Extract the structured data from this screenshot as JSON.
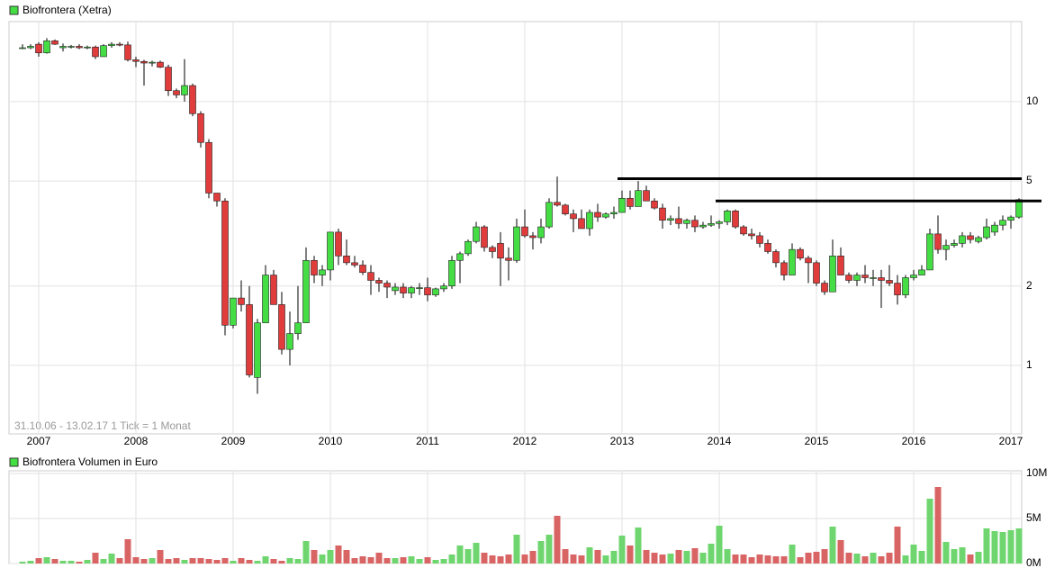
{
  "chart_data": [
    {
      "type": "candlestick",
      "log_scale": true,
      "grid": true,
      "series": [
        {
          "name": "Biofrontera (Xetra)",
          "color": "#44dd44",
          "up_color": "#44dd44",
          "down_color": "#e03c3c",
          "ohlc": [
            [
              16.0,
              16.5,
              15.8,
              16.0
            ],
            [
              16.0,
              16.5,
              15.8,
              16.2
            ],
            [
              16.5,
              16.8,
              14.8,
              15.3
            ],
            [
              15.3,
              17.4,
              15.2,
              17.0
            ],
            [
              17.0,
              17.2,
              16.4,
              16.5
            ],
            [
              16.0,
              16.6,
              15.5,
              16.2
            ],
            [
              16.2,
              16.4,
              15.9,
              16.2
            ],
            [
              16.2,
              16.5,
              15.8,
              16.0
            ],
            [
              16.0,
              16.3,
              15.8,
              16.1
            ],
            [
              16.1,
              16.3,
              14.5,
              14.8
            ],
            [
              14.8,
              16.5,
              14.8,
              16.3
            ],
            [
              16.3,
              16.8,
              16.0,
              16.5
            ],
            [
              16.5,
              16.8,
              16.2,
              16.4
            ],
            [
              16.4,
              16.9,
              14.2,
              14.4
            ],
            [
              14.4,
              14.8,
              13.5,
              14.2
            ],
            [
              14.2,
              14.4,
              11.5,
              14.0
            ],
            [
              14.0,
              14.3,
              13.6,
              14.1
            ],
            [
              14.1,
              14.3,
              13.4,
              13.5
            ],
            [
              13.5,
              13.8,
              10.5,
              11.0
            ],
            [
              11.0,
              11.2,
              10.3,
              10.6
            ],
            [
              10.6,
              14.5,
              10.0,
              11.5
            ],
            [
              11.5,
              11.7,
              8.8,
              9.0
            ],
            [
              9.0,
              9.2,
              6.7,
              7.0
            ],
            [
              7.0,
              7.2,
              4.3,
              4.5
            ],
            [
              4.5,
              4.5,
              4.0,
              4.2
            ],
            [
              4.2,
              4.3,
              1.3,
              1.42
            ],
            [
              1.42,
              1.8,
              1.38,
              1.8
            ],
            [
              1.8,
              2.1,
              1.6,
              1.7
            ],
            [
              1.7,
              2.0,
              0.9,
              0.92
            ],
            [
              0.9,
              1.5,
              0.78,
              1.45
            ],
            [
              1.45,
              2.4,
              1.45,
              2.2
            ],
            [
              2.2,
              2.3,
              1.7,
              1.7
            ],
            [
              1.7,
              1.9,
              1.1,
              1.15
            ],
            [
              1.15,
              1.6,
              1.0,
              1.32
            ],
            [
              1.32,
              2.0,
              1.25,
              1.45
            ],
            [
              1.45,
              2.8,
              1.45,
              2.5
            ],
            [
              2.5,
              2.6,
              2.05,
              2.2
            ],
            [
              2.2,
              2.4,
              2.0,
              2.3
            ],
            [
              2.3,
              3.2,
              2.1,
              3.2
            ],
            [
              3.2,
              3.3,
              2.4,
              2.6
            ],
            [
              2.6,
              3.0,
              2.4,
              2.45
            ],
            [
              2.45,
              2.6,
              2.35,
              2.4
            ],
            [
              2.4,
              2.5,
              2.2,
              2.25
            ],
            [
              2.25,
              2.4,
              1.85,
              2.1
            ],
            [
              2.1,
              2.15,
              1.9,
              2.05
            ],
            [
              2.05,
              2.1,
              1.8,
              1.98
            ],
            [
              1.92,
              2.05,
              1.85,
              1.98
            ],
            [
              1.98,
              2.05,
              1.8,
              1.88
            ],
            [
              1.88,
              2.0,
              1.8,
              1.97
            ],
            [
              1.97,
              2.05,
              1.85,
              1.97
            ],
            [
              1.97,
              2.15,
              1.75,
              1.85
            ],
            [
              1.85,
              1.97,
              1.82,
              1.95
            ],
            [
              1.95,
              2.05,
              1.9,
              2.0
            ],
            [
              2.0,
              2.6,
              1.95,
              2.5
            ],
            [
              2.5,
              2.7,
              2.05,
              2.65
            ],
            [
              2.65,
              3.0,
              2.6,
              2.95
            ],
            [
              2.95,
              3.5,
              2.9,
              3.35
            ],
            [
              3.35,
              3.4,
              2.7,
              2.8
            ],
            [
              2.8,
              2.85,
              2.55,
              2.7
            ],
            [
              2.9,
              3.2,
              2.0,
              2.55
            ],
            [
              2.55,
              2.8,
              2.1,
              2.5
            ],
            [
              2.5,
              3.6,
              2.45,
              3.35
            ],
            [
              3.35,
              3.9,
              3.05,
              3.1
            ],
            [
              3.1,
              3.2,
              2.75,
              3.05
            ],
            [
              3.05,
              3.6,
              2.9,
              3.35
            ],
            [
              3.35,
              4.3,
              3.3,
              4.15
            ],
            [
              4.15,
              5.2,
              4.0,
              4.05
            ],
            [
              4.05,
              4.1,
              3.7,
              3.75
            ],
            [
              3.75,
              3.9,
              3.2,
              3.6
            ],
            [
              3.6,
              3.9,
              3.3,
              3.3
            ],
            [
              3.3,
              3.9,
              3.1,
              3.8
            ],
            [
              3.8,
              4.1,
              3.5,
              3.65
            ],
            [
              3.65,
              3.8,
              3.6,
              3.75
            ],
            [
              3.75,
              4.0,
              3.6,
              3.8
            ],
            [
              3.8,
              4.6,
              3.8,
              4.3
            ],
            [
              4.3,
              4.6,
              3.9,
              4.0
            ],
            [
              4.0,
              5.0,
              4.0,
              4.6
            ],
            [
              4.6,
              4.8,
              4.2,
              4.2
            ],
            [
              4.2,
              4.3,
              3.9,
              3.95
            ],
            [
              3.95,
              4.1,
              3.3,
              3.55
            ],
            [
              3.55,
              3.7,
              3.4,
              3.6
            ],
            [
              3.6,
              4.0,
              3.3,
              3.45
            ],
            [
              3.45,
              3.6,
              3.3,
              3.55
            ],
            [
              3.55,
              3.7,
              3.2,
              3.35
            ],
            [
              3.35,
              3.5,
              3.3,
              3.4
            ],
            [
              3.4,
              3.7,
              3.35,
              3.45
            ],
            [
              3.45,
              3.55,
              3.3,
              3.5
            ],
            [
              3.5,
              3.9,
              3.4,
              3.85
            ],
            [
              3.85,
              3.9,
              3.3,
              3.35
            ],
            [
              3.35,
              3.4,
              3.1,
              3.15
            ],
            [
              3.15,
              3.3,
              3.0,
              3.1
            ],
            [
              3.1,
              3.2,
              2.8,
              2.9
            ],
            [
              2.9,
              3.0,
              2.65,
              2.7
            ],
            [
              2.7,
              2.75,
              2.35,
              2.45
            ],
            [
              2.45,
              2.5,
              2.1,
              2.2
            ],
            [
              2.2,
              2.9,
              2.2,
              2.75
            ],
            [
              2.75,
              2.8,
              2.5,
              2.55
            ],
            [
              2.55,
              2.6,
              2.05,
              2.45
            ],
            [
              2.45,
              2.5,
              2.0,
              2.05
            ],
            [
              2.05,
              2.1,
              1.85,
              1.9
            ],
            [
              1.9,
              3.0,
              1.9,
              2.6
            ],
            [
              2.6,
              2.8,
              2.2,
              2.2
            ],
            [
              2.2,
              2.25,
              2.05,
              2.1
            ],
            [
              2.1,
              2.25,
              2.0,
              2.2
            ],
            [
              2.2,
              2.4,
              2.05,
              2.15
            ],
            [
              2.15,
              2.3,
              2.0,
              2.15
            ],
            [
              2.15,
              2.3,
              1.65,
              2.1
            ],
            [
              2.1,
              2.4,
              2.0,
              2.05
            ],
            [
              2.05,
              2.2,
              1.7,
              1.85
            ],
            [
              1.85,
              2.2,
              1.8,
              2.15
            ],
            [
              2.15,
              2.3,
              2.1,
              2.2
            ],
            [
              2.2,
              2.4,
              2.2,
              2.3
            ],
            [
              2.3,
              3.3,
              2.3,
              3.15
            ],
            [
              3.15,
              3.7,
              2.65,
              2.75
            ],
            [
              2.75,
              3.0,
              2.5,
              2.85
            ],
            [
              2.85,
              3.0,
              2.8,
              2.9
            ],
            [
              2.9,
              3.2,
              2.8,
              3.1
            ],
            [
              3.1,
              3.2,
              2.9,
              3.0
            ],
            [
              2.95,
              3.1,
              2.9,
              3.05
            ],
            [
              3.05,
              3.6,
              3.0,
              3.35
            ],
            [
              3.2,
              3.5,
              3.1,
              3.4
            ],
            [
              3.4,
              3.7,
              3.25,
              3.55
            ],
            [
              3.55,
              3.7,
              3.3,
              3.65
            ],
            [
              3.65,
              4.3,
              3.6,
              4.25
            ]
          ]
        }
      ],
      "categories": [
        null,
        null,
        "2007",
        null,
        null,
        null,
        null,
        null,
        null,
        null,
        null,
        null,
        null,
        null,
        "2008",
        null,
        null,
        null,
        null,
        null,
        null,
        null,
        null,
        null,
        null,
        null,
        "2009",
        null,
        null,
        null,
        null,
        null,
        null,
        null,
        null,
        null,
        null,
        null,
        "2010",
        null,
        null,
        null,
        null,
        null,
        null,
        null,
        null,
        null,
        null,
        null,
        "2011",
        null,
        null,
        null,
        null,
        null,
        null,
        null,
        null,
        null,
        null,
        null,
        "2012",
        null,
        null,
        null,
        null,
        null,
        null,
        null,
        null,
        null,
        null,
        null,
        "2013",
        null,
        null,
        null,
        null,
        null,
        null,
        null,
        null,
        null,
        null,
        null,
        "2014",
        null,
        null,
        null,
        null,
        null,
        null,
        null,
        null,
        null,
        null,
        null,
        "2015",
        null,
        null,
        null,
        null,
        null,
        null,
        null,
        null,
        null,
        null,
        null,
        "2016",
        null,
        null,
        null,
        null,
        null,
        null,
        null,
        null,
        null,
        null,
        null,
        "2017",
        null
      ],
      "ylim": [
        0.55,
        20.1
      ],
      "yticks": [
        1,
        2,
        5,
        10
      ],
      "hlines": [
        5.1,
        4.2
      ],
      "note": "31.10.06 - 13.02.17   1 Tick = 1 Monat"
    },
    {
      "type": "bar",
      "grid": true,
      "series": [
        {
          "name": "Biofrontera Volumen in Euro",
          "color": "#44dd44",
          "values": [
            0.2,
            0.3,
            0.6,
            0.7,
            0.5,
            0.3,
            0.3,
            0.2,
            0.4,
            1.2,
            0.5,
            1.1,
            0.6,
            2.7,
            0.7,
            0.5,
            0.6,
            1.5,
            0.5,
            0.6,
            0.4,
            0.6,
            0.6,
            0.5,
            0.4,
            0.6,
            0.3,
            0.6,
            0.4,
            0.3,
            0.8,
            0.5,
            0.3,
            0.6,
            0.5,
            2.5,
            1.5,
            1.0,
            1.5,
            2.0,
            1.5,
            0.6,
            0.8,
            0.7,
            1.2,
            0.6,
            0.6,
            0.7,
            0.8,
            0.5,
            0.7,
            0.4,
            0.5,
            1.0,
            2.0,
            1.6,
            2.3,
            1.2,
            0.9,
            0.8,
            1.0,
            3.2,
            1.0,
            1.4,
            2.5,
            3.2,
            5.3,
            1.6,
            1.0,
            0.9,
            1.8,
            1.5,
            0.9,
            1.4,
            3.1,
            2.0,
            4.0,
            1.5,
            1.2,
            1.0,
            1.1,
            1.5,
            1.4,
            1.7,
            1.2,
            2.2,
            4.2,
            1.6,
            1.0,
            1.0,
            0.7,
            1.0,
            0.9,
            0.8,
            0.8,
            2.1,
            0.7,
            1.2,
            1.3,
            1.6,
            4.1,
            2.6,
            1.2,
            1.1,
            0.8,
            1.2,
            0.8,
            1.2,
            4.1,
            0.9,
            2.1,
            1.4,
            7.2,
            8.5,
            2.4,
            1.6,
            1.8,
            1.0,
            1.3,
            3.9,
            3.6,
            3.5,
            3.7,
            3.9
          ]
        }
      ],
      "ylim": [
        0,
        10.3
      ],
      "yticks": [
        {
          "value": 0,
          "label": "0M"
        },
        {
          "value": 5,
          "label": "5M"
        },
        {
          "value": 10,
          "label": "10M"
        }
      ]
    }
  ]
}
